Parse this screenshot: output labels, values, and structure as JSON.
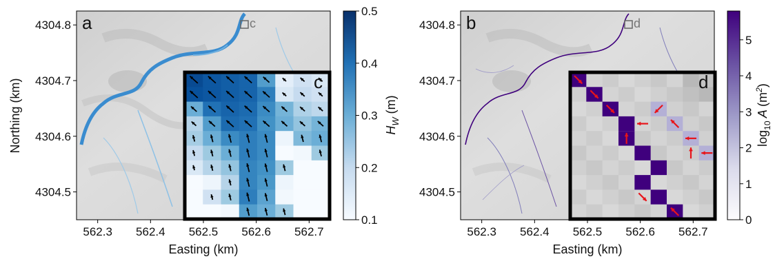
{
  "chart_data": [
    {
      "type": "heatmap",
      "panel": "a",
      "xlabel": "Easting (km)",
      "ylabel": "Northing (km)",
      "xlim": [
        562.26,
        562.74
      ],
      "ylim": [
        4304.45,
        4304.825
      ],
      "xticks": [
        562.3,
        562.4,
        562.5,
        562.6,
        562.7
      ],
      "yticks": [
        4304.5,
        4304.6,
        4304.7,
        4304.8
      ],
      "xtick_labels": [
        "562.3",
        "562.4",
        "562.5",
        "562.6",
        "562.7"
      ],
      "ytick_labels": [
        "4304.5",
        "4304.6",
        "4304.7",
        "4304.8"
      ],
      "colorbar": {
        "label": "H_W (m)",
        "label_main": "H",
        "label_sub": "W",
        "label_rest": " (m)",
        "range": [
          0.1,
          0.5
        ],
        "ticks": [
          0.1,
          0.2,
          0.3,
          0.4,
          0.5
        ],
        "tick_labels": [
          "0.1",
          "0.2",
          "0.3",
          "0.4",
          "0.5"
        ],
        "colormap": "Blues",
        "color_low": "#f7fbff",
        "color_high": "#08306b"
      },
      "box_label": "c",
      "inset": {
        "label": "c",
        "grid": [
          [
            0.46,
            0.44,
            0.43,
            0.42,
            0.33,
            0.14,
            0.18,
            0.16
          ],
          [
            0.45,
            0.44,
            0.43,
            0.42,
            0.38,
            0.16,
            0.2,
            0.18
          ],
          [
            0.3,
            0.4,
            0.42,
            0.41,
            0.36,
            0.29,
            0.23,
            0.21
          ],
          [
            0.22,
            0.33,
            0.41,
            0.4,
            0.35,
            0.3,
            0.26,
            0.29
          ],
          [
            0.24,
            0.3,
            0.36,
            0.38,
            0.36,
            0.12,
            0.28,
            0.3
          ],
          [
            0.2,
            0.25,
            0.3,
            0.38,
            0.36,
            0.1,
            0.11,
            0.25
          ],
          [
            0.16,
            0.22,
            0.26,
            0.37,
            0.35,
            0.25,
            0.1,
            0.1
          ],
          [
            0.1,
            0.12,
            0.22,
            0.37,
            0.34,
            0.12,
            0.1,
            0.1
          ],
          [
            0.1,
            0.18,
            0.25,
            0.38,
            0.32,
            0.11,
            0.1,
            0.1
          ],
          [
            0.1,
            0.1,
            0.11,
            0.33,
            0.3,
            0.25,
            0.1,
            0.1
          ]
        ]
      }
    },
    {
      "type": "heatmap",
      "panel": "b",
      "xlabel": "Easting (km)",
      "xlim": [
        562.26,
        562.74
      ],
      "ylim": [
        4304.45,
        4304.825
      ],
      "xticks": [
        562.3,
        562.4,
        562.5,
        562.6,
        562.7
      ],
      "yticks": [
        4304.5,
        4304.6,
        4304.7,
        4304.8
      ],
      "xtick_labels": [
        "562.3",
        "562.4",
        "562.5",
        "562.6",
        "562.7"
      ],
      "ytick_labels": [
        "4304.5",
        "4304.6",
        "4304.7",
        "4304.8"
      ],
      "colorbar": {
        "label": "log10 A (m^2)",
        "label_log": "log",
        "label_log_sub": "10",
        "label_a": " A ",
        "label_unit": "(m",
        "label_unit_sup": "2",
        "label_close": ")",
        "range": [
          0,
          5.8
        ],
        "ticks": [
          0,
          1,
          2,
          3,
          4,
          5
        ],
        "tick_labels": [
          "0",
          "1",
          "2",
          "3",
          "4",
          "5"
        ],
        "colormap": "Purples",
        "color_low": "#fcfbfd",
        "color_high": "#3f007d"
      },
      "box_label": "d",
      "inset": {
        "label": "d",
        "channel_cells": [
          [
            0,
            0
          ],
          [
            1,
            1
          ],
          [
            2,
            2
          ],
          [
            3,
            3
          ],
          [
            4,
            3
          ],
          [
            5,
            4
          ],
          [
            6,
            5
          ],
          [
            7,
            4
          ],
          [
            8,
            5
          ],
          [
            9,
            6
          ]
        ],
        "tributary_cells": [
          [
            2,
            5
          ],
          [
            3,
            6
          ],
          [
            4,
            7
          ],
          [
            5,
            8
          ]
        ],
        "arrows": [
          {
            "r": 0,
            "c": 0,
            "dx": 1,
            "dy": 1
          },
          {
            "r": 1,
            "c": 1,
            "dx": 1,
            "dy": 1
          },
          {
            "r": 2,
            "c": 2,
            "dx": 1,
            "dy": 1
          },
          {
            "r": 3,
            "c": 4,
            "dx": -1,
            "dy": 0
          },
          {
            "r": 2,
            "c": 5,
            "dx": -1,
            "dy": 1
          },
          {
            "r": 3,
            "c": 6,
            "dx": -1,
            "dy": -1
          },
          {
            "r": 4,
            "c": 3,
            "dx": 0,
            "dy": -1
          },
          {
            "r": 4,
            "c": 7,
            "dx": -1,
            "dy": 0
          },
          {
            "r": 5,
            "c": 7,
            "dx": 0,
            "dy": -1
          },
          {
            "r": 5,
            "c": 8,
            "dx": -1,
            "dy": 0
          },
          {
            "r": 8,
            "c": 4,
            "dx": 1,
            "dy": 1
          },
          {
            "r": 9,
            "c": 6,
            "dx": -1,
            "dy": -1
          }
        ]
      }
    }
  ]
}
